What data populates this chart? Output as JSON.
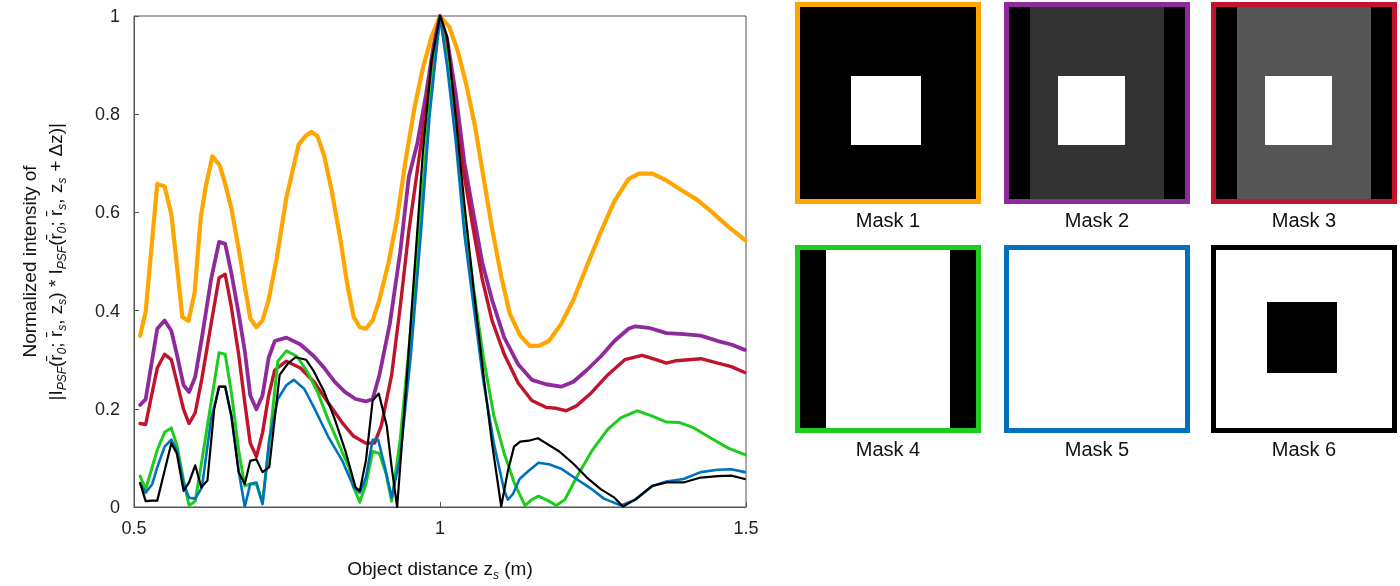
{
  "chart_data": {
    "type": "line",
    "xlabel": "Object distance z$_{s}$ (m)",
    "ylabel": "Normalized intensity of\n|I$_{PSF}$(r̄$_{0}$; r̄$_{s}$, z$_{s}$) * I$_{PSF}$(r̄$_{0}$; r̄$_{s}$, z$_{s}$ + Δz)|",
    "xlim": [
      0.5,
      1.5
    ],
    "xticks": [
      0.5,
      1,
      1.5
    ],
    "ylim": [
      0,
      1
    ],
    "yticks": [
      0,
      0.2,
      0.4,
      0.6,
      0.8,
      1
    ],
    "legend": "right",
    "series": [
      {
        "name": "Mask 1",
        "color": "#ffa500",
        "x": [
          0.51,
          0.519,
          0.538,
          0.55,
          0.561,
          0.569,
          0.579,
          0.589,
          0.599,
          0.609,
          0.617,
          0.628,
          0.64,
          0.649,
          0.659,
          0.671,
          0.681,
          0.69,
          0.7,
          0.71,
          0.72,
          0.733,
          0.749,
          0.769,
          0.78,
          0.79,
          0.8,
          0.811,
          0.823,
          0.837,
          0.848,
          0.859,
          0.869,
          0.879,
          0.89,
          0.901,
          0.916,
          0.93,
          0.944,
          0.958,
          0.972,
          0.986,
          1,
          1.015,
          1.029,
          1.043,
          1.057,
          1.071,
          1.085,
          1.1,
          1.114,
          1.131,
          1.147,
          1.161,
          1.178,
          1.198,
          1.218,
          1.24,
          1.263,
          1.285,
          1.308,
          1.325,
          1.347,
          1.37,
          1.392,
          1.42,
          1.443,
          1.471,
          1.499
        ],
        "values": [
          0.349,
          0.397,
          0.658,
          0.653,
          0.596,
          0.505,
          0.387,
          0.379,
          0.436,
          0.589,
          0.651,
          0.714,
          0.696,
          0.658,
          0.609,
          0.526,
          0.45,
          0.384,
          0.366,
          0.38,
          0.422,
          0.505,
          0.63,
          0.738,
          0.755,
          0.764,
          0.755,
          0.714,
          0.644,
          0.547,
          0.457,
          0.387,
          0.366,
          0.363,
          0.38,
          0.422,
          0.498,
          0.589,
          0.707,
          0.811,
          0.894,
          0.957,
          1,
          0.978,
          0.929,
          0.86,
          0.777,
          0.672,
          0.568,
          0.47,
          0.394,
          0.349,
          0.328,
          0.328,
          0.338,
          0.373,
          0.422,
          0.491,
          0.561,
          0.623,
          0.668,
          0.679,
          0.679,
          0.665,
          0.647,
          0.626,
          0.602,
          0.571,
          0.543
        ]
      },
      {
        "name": "Mask 2",
        "color": "#8e2a9c",
        "x": [
          0.51,
          0.519,
          0.538,
          0.55,
          0.561,
          0.57,
          0.581,
          0.59,
          0.6,
          0.611,
          0.626,
          0.639,
          0.649,
          0.659,
          0.671,
          0.681,
          0.69,
          0.7,
          0.71,
          0.72,
          0.73,
          0.749,
          0.772,
          0.794,
          0.811,
          0.828,
          0.845,
          0.862,
          0.879,
          0.89,
          0.901,
          0.918,
          0.935,
          0.949,
          0.963,
          0.977,
          0.989,
          1,
          1.012,
          1.026,
          1.04,
          1.055,
          1.069,
          1.085,
          1.105,
          1.128,
          1.15,
          1.173,
          1.198,
          1.218,
          1.24,
          1.263,
          1.285,
          1.308,
          1.319,
          1.341,
          1.37,
          1.398,
          1.426,
          1.454,
          1.476,
          1.498
        ],
        "values": [
          0.208,
          0.219,
          0.363,
          0.38,
          0.359,
          0.311,
          0.248,
          0.234,
          0.265,
          0.345,
          0.464,
          0.54,
          0.536,
          0.477,
          0.394,
          0.318,
          0.227,
          0.199,
          0.227,
          0.304,
          0.338,
          0.345,
          0.331,
          0.307,
          0.283,
          0.255,
          0.234,
          0.22,
          0.215,
          0.22,
          0.269,
          0.373,
          0.519,
          0.672,
          0.741,
          0.839,
          0.936,
          1,
          0.95,
          0.839,
          0.7,
          0.595,
          0.498,
          0.422,
          0.345,
          0.29,
          0.259,
          0.25,
          0.245,
          0.255,
          0.279,
          0.307,
          0.338,
          0.363,
          0.368,
          0.365,
          0.354,
          0.352,
          0.349,
          0.338,
          0.331,
          0.32
        ]
      },
      {
        "name": "Mask 3",
        "color": "#c0142c",
        "x": [
          0.51,
          0.519,
          0.538,
          0.55,
          0.561,
          0.57,
          0.581,
          0.59,
          0.6,
          0.611,
          0.626,
          0.639,
          0.649,
          0.659,
          0.671,
          0.681,
          0.69,
          0.7,
          0.71,
          0.72,
          0.73,
          0.749,
          0.772,
          0.794,
          0.817,
          0.84,
          0.859,
          0.879,
          0.893,
          0.904,
          0.921,
          0.935,
          0.949,
          0.963,
          0.977,
          0.989,
          1,
          1.012,
          1.026,
          1.04,
          1.055,
          1.069,
          1.085,
          1.105,
          1.128,
          1.15,
          1.173,
          1.19,
          1.206,
          1.223,
          1.246,
          1.274,
          1.302,
          1.33,
          1.353,
          1.37,
          1.386,
          1.426,
          1.454,
          1.476,
          1.498
        ],
        "values": [
          0.17,
          0.168,
          0.283,
          0.311,
          0.3,
          0.255,
          0.199,
          0.17,
          0.192,
          0.262,
          0.373,
          0.467,
          0.474,
          0.408,
          0.311,
          0.213,
          0.13,
          0.102,
          0.151,
          0.227,
          0.279,
          0.297,
          0.283,
          0.255,
          0.213,
          0.172,
          0.144,
          0.13,
          0.13,
          0.165,
          0.269,
          0.408,
          0.561,
          0.686,
          0.811,
          0.922,
          1,
          0.936,
          0.797,
          0.672,
          0.561,
          0.464,
          0.38,
          0.311,
          0.252,
          0.217,
          0.203,
          0.201,
          0.196,
          0.206,
          0.231,
          0.269,
          0.3,
          0.309,
          0.3,
          0.293,
          0.298,
          0.302,
          0.293,
          0.286,
          0.274
        ]
      },
      {
        "name": "Mask 4",
        "color": "#1ecc1e",
        "x": [
          0.51,
          0.519,
          0.538,
          0.55,
          0.561,
          0.57,
          0.581,
          0.59,
          0.6,
          0.611,
          0.626,
          0.639,
          0.649,
          0.659,
          0.671,
          0.681,
          0.69,
          0.7,
          0.71,
          0.721,
          0.735,
          0.749,
          0.766,
          0.783,
          0.8,
          0.817,
          0.834,
          0.851,
          0.859,
          0.869,
          0.879,
          0.89,
          0.901,
          0.912,
          0.921,
          0.935,
          0.952,
          0.969,
          0.983,
          1,
          1.012,
          1.026,
          1.04,
          1.055,
          1.071,
          1.088,
          1.105,
          1.122,
          1.139,
          1.15,
          1.161,
          1.178,
          1.19,
          1.204,
          1.223,
          1.249,
          1.274,
          1.296,
          1.322,
          1.347,
          1.37,
          1.392,
          1.415,
          1.443,
          1.471,
          1.499
        ],
        "values": [
          0.063,
          0.036,
          0.116,
          0.152,
          0.161,
          0.126,
          0.054,
          0.003,
          0.012,
          0.095,
          0.213,
          0.314,
          0.311,
          0.234,
          0.116,
          0.043,
          0.047,
          0.047,
          0.008,
          0.13,
          0.297,
          0.318,
          0.307,
          0.276,
          0.234,
          0.179,
          0.13,
          0.081,
          0.04,
          0.01,
          0.047,
          0.113,
          0.109,
          0.067,
          0.012,
          0.137,
          0.359,
          0.602,
          0.818,
          1,
          0.908,
          0.755,
          0.589,
          0.443,
          0.304,
          0.186,
          0.109,
          0.047,
          0.003,
          0.015,
          0.022,
          0.012,
          0.003,
          0.015,
          0.06,
          0.116,
          0.158,
          0.182,
          0.196,
          0.185,
          0.173,
          0.172,
          0.161,
          0.14,
          0.12,
          0.106
        ]
      },
      {
        "name": "Mask 5",
        "color": "#0072bd",
        "x": [
          0.51,
          0.519,
          0.53,
          0.538,
          0.55,
          0.561,
          0.57,
          0.581,
          0.59,
          0.6,
          0.611,
          0.626,
          0.639,
          0.649,
          0.659,
          0.671,
          0.681,
          0.69,
          0.7,
          0.71,
          0.721,
          0.735,
          0.749,
          0.761,
          0.778,
          0.794,
          0.817,
          0.84,
          0.859,
          0.869,
          0.879,
          0.89,
          0.899,
          0.91,
          0.921,
          0.935,
          0.952,
          0.969,
          0.983,
          1,
          1.012,
          1.026,
          1.04,
          1.055,
          1.071,
          1.088,
          1.105,
          1.111,
          1.119,
          1.13,
          1.145,
          1.161,
          1.178,
          1.198,
          1.223,
          1.246,
          1.268,
          1.296,
          1.319,
          1.347,
          1.37,
          1.398,
          1.426,
          1.454,
          1.476,
          1.498
        ],
        "values": [
          0.047,
          0.029,
          0.047,
          0.081,
          0.123,
          0.137,
          0.116,
          0.047,
          0.019,
          0.017,
          0.04,
          0.179,
          0.245,
          0.245,
          0.186,
          0.074,
          0,
          0.047,
          0.05,
          0.006,
          0.137,
          0.22,
          0.248,
          0.259,
          0.241,
          0.203,
          0.144,
          0.095,
          0.04,
          0.029,
          0.06,
          0.137,
          0.137,
          0.081,
          0.019,
          0.102,
          0.304,
          0.561,
          0.797,
          1,
          0.894,
          0.741,
          0.554,
          0.408,
          0.255,
          0.13,
          0.033,
          0.015,
          0.026,
          0.057,
          0.074,
          0.09,
          0.087,
          0.078,
          0.057,
          0.038,
          0.017,
          0.003,
          0.015,
          0.043,
          0.052,
          0.057,
          0.071,
          0.076,
          0.077,
          0.071
        ]
      },
      {
        "name": "Mask 6",
        "color": "#000000",
        "x": [
          0.51,
          0.519,
          0.53,
          0.538,
          0.55,
          0.561,
          0.57,
          0.581,
          0.59,
          0.6,
          0.61,
          0.62,
          0.631,
          0.639,
          0.649,
          0.659,
          0.671,
          0.681,
          0.69,
          0.7,
          0.71,
          0.721,
          0.738,
          0.752,
          0.764,
          0.781,
          0.794,
          0.811,
          0.828,
          0.845,
          0.862,
          0.869,
          0.879,
          0.89,
          0.9,
          0.913,
          0.921,
          0.93,
          0.944,
          0.958,
          0.972,
          0.986,
          1,
          1.012,
          1.026,
          1.04,
          1.055,
          1.071,
          1.085,
          1.1,
          1.111,
          1.121,
          1.131,
          1.145,
          1.16,
          1.173,
          1.195,
          1.218,
          1.24,
          1.263,
          1.285,
          1.299,
          1.319,
          1.347,
          1.37,
          1.398,
          1.426,
          1.454,
          1.476,
          1.498
        ],
        "values": [
          0.049,
          0.012,
          0.013,
          0.013,
          0.074,
          0.13,
          0.109,
          0.033,
          0.05,
          0.085,
          0.04,
          0.054,
          0.199,
          0.245,
          0.245,
          0.186,
          0.071,
          0.047,
          0.094,
          0.097,
          0.071,
          0.081,
          0.269,
          0.293,
          0.305,
          0.3,
          0.276,
          0.234,
          0.179,
          0.116,
          0.04,
          0.033,
          0.095,
          0.217,
          0.231,
          0.165,
          0.081,
          0,
          0.234,
          0.477,
          0.721,
          0.908,
          1,
          0.957,
          0.79,
          0.616,
          0.443,
          0.269,
          0.13,
          0.001,
          0.074,
          0.123,
          0.133,
          0.135,
          0.14,
          0.13,
          0.113,
          0.088,
          0.06,
          0.036,
          0.019,
          0.001,
          0.015,
          0.043,
          0.05,
          0.05,
          0.06,
          0.063,
          0.064,
          0.057
        ]
      }
    ]
  }
}
